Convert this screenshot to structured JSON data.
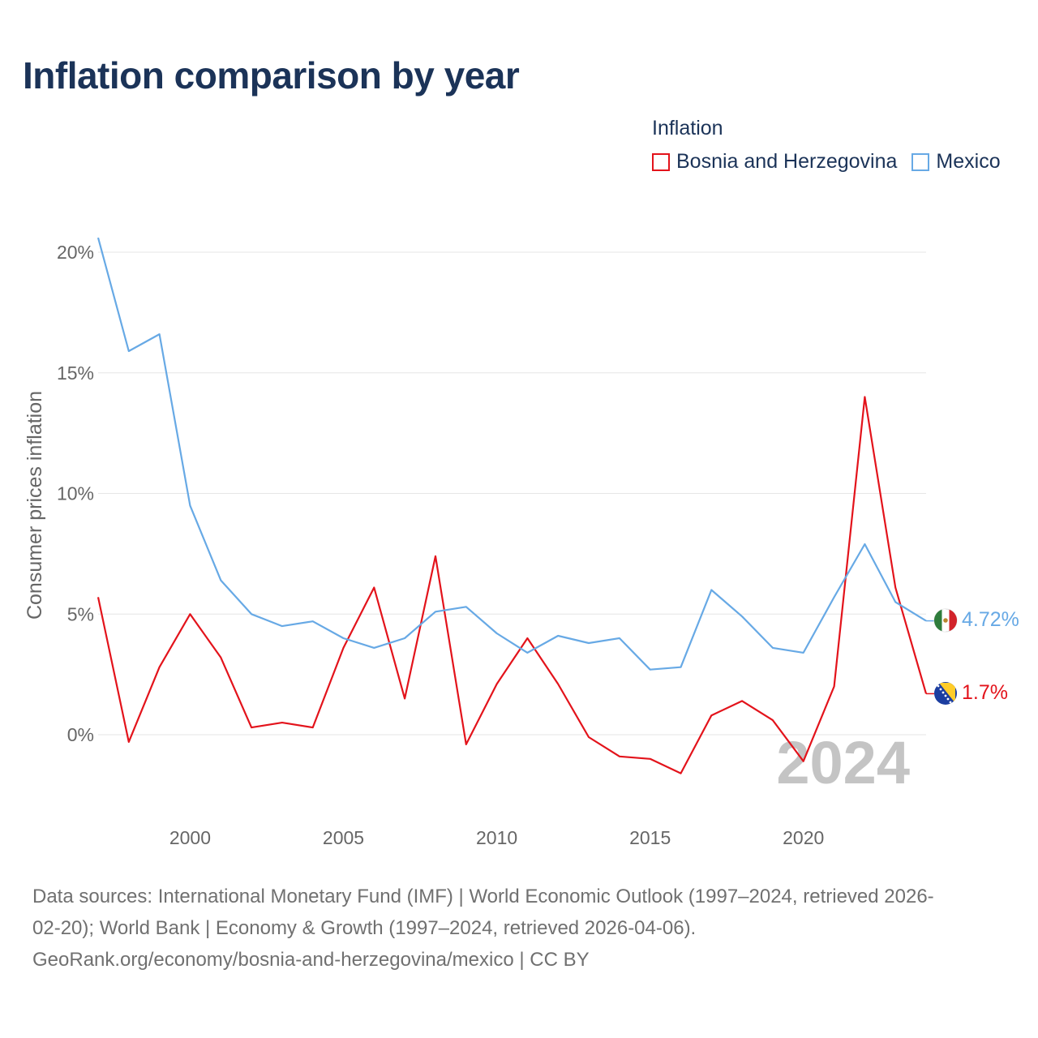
{
  "title": "Inflation comparison by year",
  "legend": {
    "title": "Inflation",
    "items": [
      {
        "label": "Bosnia and Herzegovina",
        "color": "#e3131b"
      },
      {
        "label": "Mexico",
        "color": "#67a9e5"
      }
    ]
  },
  "year_watermark": "2024",
  "end_labels": {
    "mexico": "4.72%",
    "bosnia": "1.7%"
  },
  "source": {
    "line1": "Data sources: International Monetary Fund (IMF) | World Economic Outlook (1997–2024, retrieved 2026-",
    "line2": "02-20); World Bank | Economy & Growth (1997–2024, retrieved 2026-04-06).",
    "line3": "GeoRank.org/economy/bosnia-and-herzegovina/mexico | CC BY"
  },
  "chart_data": {
    "type": "line",
    "title": "Inflation comparison by year",
    "xlabel": "",
    "ylabel": "Consumer prices inflation",
    "xlim": [
      1997,
      2024
    ],
    "ylim": [
      -3.4,
      21.5
    ],
    "x_ticks": [
      2000,
      2005,
      2010,
      2015,
      2020
    ],
    "x_tick_labels": [
      "2000",
      "2005",
      "2010",
      "2015",
      "2020"
    ],
    "y_ticks": [
      0,
      5,
      10,
      15,
      20
    ],
    "y_tick_labels": [
      "0%",
      "5%",
      "10%",
      "15%",
      "20%"
    ],
    "grid": true,
    "x": [
      1997,
      1998,
      1999,
      2000,
      2001,
      2002,
      2003,
      2004,
      2005,
      2006,
      2007,
      2008,
      2009,
      2010,
      2011,
      2012,
      2013,
      2014,
      2015,
      2016,
      2017,
      2018,
      2019,
      2020,
      2021,
      2022,
      2023,
      2024
    ],
    "series": [
      {
        "name": "Bosnia and Herzegovina",
        "color": "#e3131b",
        "values": [
          5.7,
          -0.3,
          2.8,
          5.0,
          3.2,
          0.3,
          0.5,
          0.3,
          3.6,
          6.1,
          1.5,
          7.4,
          -0.4,
          2.1,
          4.0,
          2.1,
          -0.1,
          -0.9,
          -1.0,
          -1.6,
          0.8,
          1.4,
          0.6,
          -1.1,
          2.0,
          14.0,
          6.1,
          1.7
        ]
      },
      {
        "name": "Mexico",
        "color": "#67a9e5",
        "values": [
          20.6,
          15.9,
          16.6,
          9.5,
          6.4,
          5.0,
          4.5,
          4.7,
          4.0,
          3.6,
          4.0,
          5.1,
          5.3,
          4.2,
          3.4,
          4.1,
          3.8,
          4.0,
          2.7,
          2.8,
          6.0,
          4.9,
          3.6,
          3.4,
          5.7,
          7.9,
          5.5,
          4.72
        ]
      }
    ]
  }
}
